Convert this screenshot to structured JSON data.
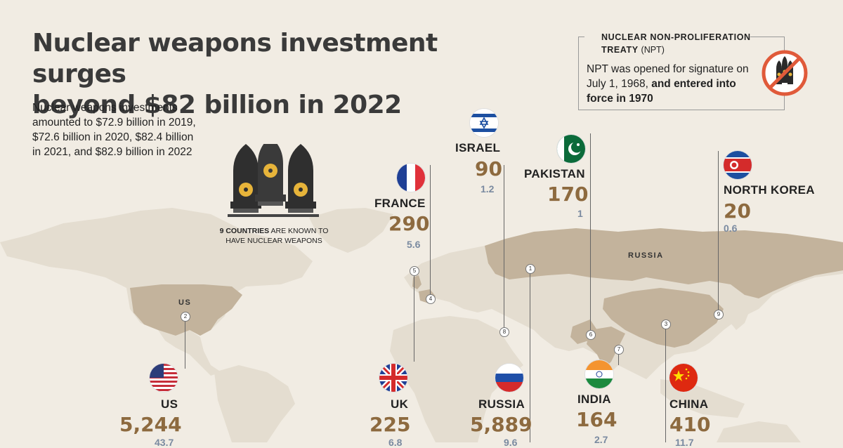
{
  "title_line1": "Nuclear weapons investment surges",
  "title_line2": "beyond $82 billion in 2022",
  "intro": "Nuclear weapons investments amounted to $72.9 billion in 2019, $72.6 billion in 2020, $82.4 billion in 2021, and $82.9 billion in 2022",
  "npt": {
    "title_bold_1": "NUCLEAR NON-PROLIFERATION",
    "title_bold_2": "TREATY",
    "title_abbr": "(NPT)",
    "text_plain": "NPT was opened for signature on July 1, 1968, ",
    "text_bold": "and entered into force in 1970"
  },
  "missiles_caption_bold": "9 COUNTRIES",
  "missiles_caption_rest": " ARE KNOWN TO HAVE NUCLEAR WEAPONS",
  "map_labels": {
    "us": "US",
    "russia": "RUSSIA"
  },
  "markers": [
    "1",
    "2",
    "3",
    "4",
    "5",
    "6",
    "7",
    "8",
    "9"
  ],
  "countries": {
    "israel": {
      "name": "ISRAEL",
      "warheads": "90",
      "investment": "1.2"
    },
    "france": {
      "name": "FRANCE",
      "warheads": "290",
      "investment": "5.6"
    },
    "pakistan": {
      "name": "PAKISTAN",
      "warheads": "170",
      "investment": "1"
    },
    "north_korea": {
      "name": "NORTH KOREA",
      "warheads": "20",
      "investment": "0.6"
    },
    "us": {
      "name": "US",
      "warheads": "5,244",
      "investment": "43.7"
    },
    "uk": {
      "name": "UK",
      "warheads": "225",
      "investment": "6.8"
    },
    "russia": {
      "name": "RUSSIA",
      "warheads": "5,889",
      "investment": "9.6"
    },
    "india": {
      "name": "INDIA",
      "warheads": "164",
      "investment": "2.7"
    },
    "china": {
      "name": "CHINA",
      "warheads": "410",
      "investment": "11.7"
    }
  },
  "colors": {
    "background": "#f1ece3",
    "land": "#e5dfd3",
    "highlight": "#c3b39c",
    "warheads": "#8d6a3f",
    "investment": "#7a8aa0"
  }
}
